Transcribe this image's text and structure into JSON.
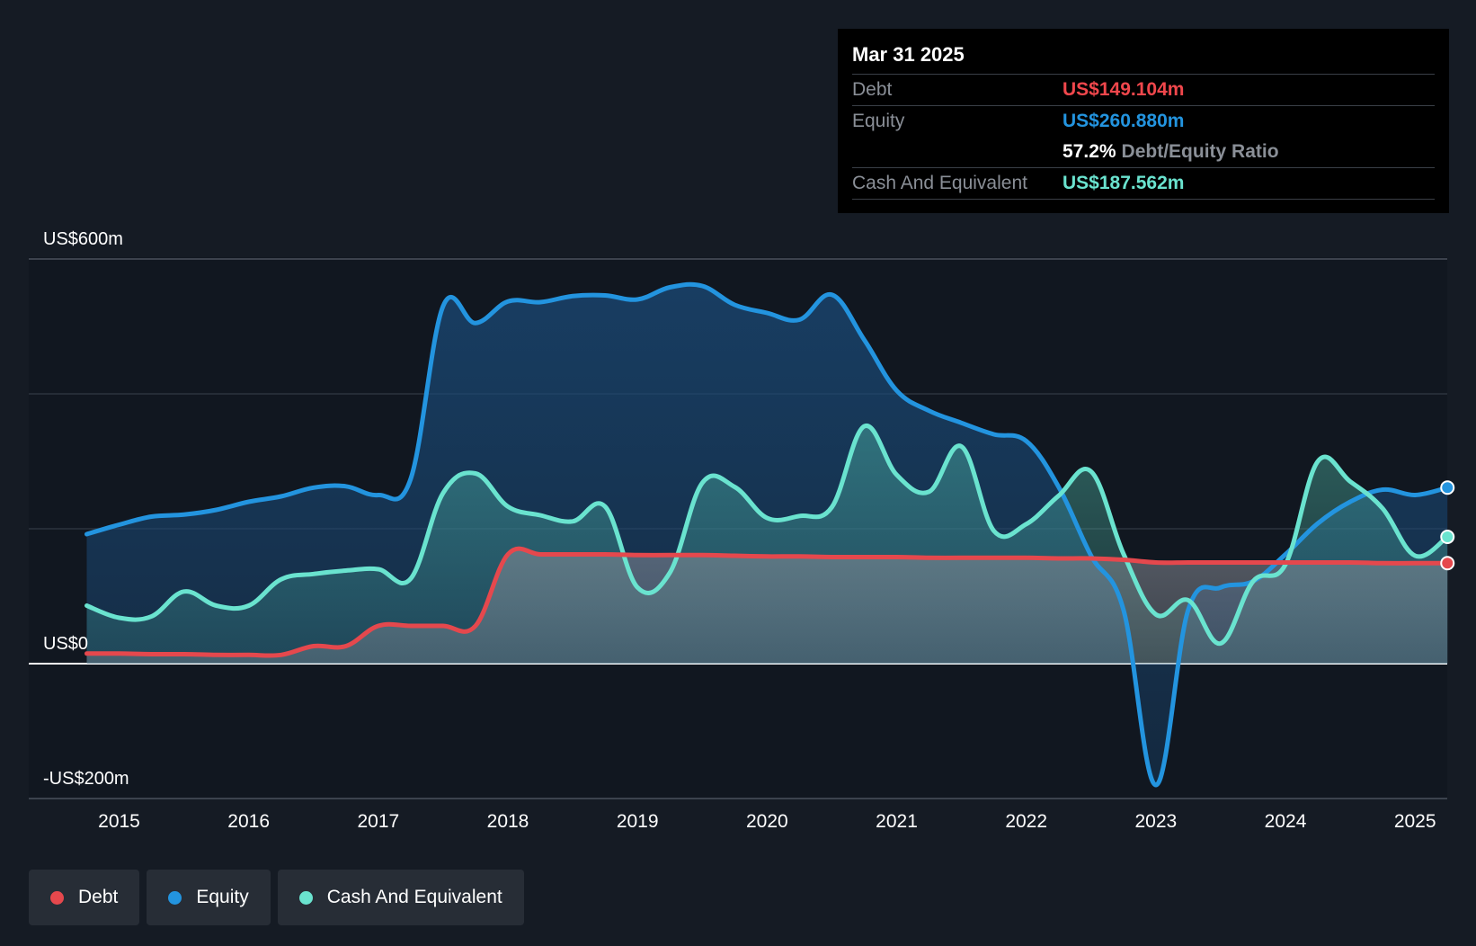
{
  "tooltip": {
    "date": "Mar 31 2025",
    "rows": {
      "debt": {
        "label": "Debt",
        "value": "US$149.104m"
      },
      "equity": {
        "label": "Equity",
        "value": "US$260.880m"
      },
      "ratio": {
        "percent": "57.2%",
        "label": "Debt/Equity Ratio"
      },
      "cash": {
        "label": "Cash And Equivalent",
        "value": "US$187.562m"
      }
    }
  },
  "legend": [
    {
      "label": "Debt",
      "color": "#e5484d"
    },
    {
      "label": "Equity",
      "color": "#2394df"
    },
    {
      "label": "Cash And Equivalent",
      "color": "#6ae3cf"
    }
  ],
  "chart_data": {
    "type": "area",
    "y_tick_labels": [
      "US$600m",
      "US$0",
      "-US$200m"
    ],
    "ylim": [
      -200,
      600
    ],
    "xlim": [
      2014.25,
      2025.25
    ],
    "x_tick_labels": [
      "2015",
      "2016",
      "2017",
      "2018",
      "2019",
      "2020",
      "2021",
      "2022",
      "2023",
      "2024",
      "2025"
    ],
    "x_ticks": [
      2015,
      2016,
      2017,
      2018,
      2019,
      2020,
      2021,
      2022,
      2023,
      2024,
      2025
    ],
    "grid": true,
    "legend_position": "bottom-left",
    "series": [
      {
        "name": "Equity",
        "color": "#2394df",
        "x": [
          2014.75,
          2015.0,
          2015.25,
          2015.5,
          2015.75,
          2016.0,
          2016.25,
          2016.5,
          2016.75,
          2017.0,
          2017.25,
          2017.5,
          2017.75,
          2018.0,
          2018.25,
          2018.5,
          2018.75,
          2019.0,
          2019.25,
          2019.5,
          2019.75,
          2020.0,
          2020.25,
          2020.5,
          2020.75,
          2021.0,
          2021.25,
          2021.5,
          2021.75,
          2022.0,
          2022.25,
          2022.5,
          2022.75,
          2023.0,
          2023.25,
          2023.5,
          2023.75,
          2024.0,
          2024.25,
          2024.5,
          2024.75,
          2025.0,
          2025.25
        ],
        "values": [
          192,
          206,
          218,
          221,
          228,
          240,
          248,
          261,
          263,
          250,
          274,
          530,
          505,
          537,
          536,
          545,
          546,
          540,
          558,
          560,
          532,
          520,
          510,
          547,
          480,
          405,
          375,
          357,
          340,
          330,
          262,
          160,
          80,
          -180,
          80,
          113,
          122,
          162,
          208,
          240,
          258,
          250,
          261
        ]
      },
      {
        "name": "Cash And Equivalent",
        "color": "#6ae3cf",
        "x": [
          2014.75,
          2015.0,
          2015.25,
          2015.5,
          2015.75,
          2016.0,
          2016.25,
          2016.5,
          2016.75,
          2017.0,
          2017.25,
          2017.5,
          2017.75,
          2018.0,
          2018.25,
          2018.5,
          2018.75,
          2019.0,
          2019.25,
          2019.5,
          2019.75,
          2020.0,
          2020.25,
          2020.5,
          2020.75,
          2021.0,
          2021.25,
          2021.5,
          2021.75,
          2022.0,
          2022.25,
          2022.5,
          2022.75,
          2023.0,
          2023.25,
          2023.5,
          2023.75,
          2024.0,
          2024.25,
          2024.5,
          2024.75,
          2025.0,
          2025.25
        ],
        "values": [
          86,
          68,
          70,
          107,
          86,
          86,
          125,
          133,
          138,
          140,
          126,
          253,
          282,
          233,
          220,
          211,
          233,
          113,
          135,
          268,
          262,
          216,
          219,
          232,
          352,
          280,
          255,
          322,
          197,
          207,
          249,
          285,
          163,
          73,
          94,
          30,
          122,
          147,
          300,
          270,
          230,
          160,
          188
        ]
      },
      {
        "name": "Debt",
        "color": "#e5484d",
        "x": [
          2014.75,
          2015.0,
          2015.25,
          2015.5,
          2015.75,
          2016.0,
          2016.25,
          2016.5,
          2016.75,
          2017.0,
          2017.25,
          2017.5,
          2017.75,
          2018.0,
          2018.25,
          2018.5,
          2018.75,
          2019.0,
          2019.25,
          2019.5,
          2019.75,
          2020.0,
          2020.25,
          2020.5,
          2020.75,
          2021.0,
          2021.25,
          2021.5,
          2021.75,
          2022.0,
          2022.25,
          2022.5,
          2022.75,
          2023.0,
          2023.25,
          2023.5,
          2023.75,
          2024.0,
          2024.25,
          2024.5,
          2024.75,
          2025.0,
          2025.25
        ],
        "values": [
          15,
          15,
          14,
          14,
          13,
          13,
          13,
          26,
          26,
          56,
          56,
          56,
          56,
          162,
          162,
          162,
          162,
          161,
          161,
          161,
          160,
          159,
          159,
          158,
          158,
          158,
          157,
          157,
          157,
          157,
          156,
          156,
          154,
          150,
          150,
          150,
          150,
          150,
          150,
          150,
          149,
          149,
          149
        ]
      }
    ]
  }
}
